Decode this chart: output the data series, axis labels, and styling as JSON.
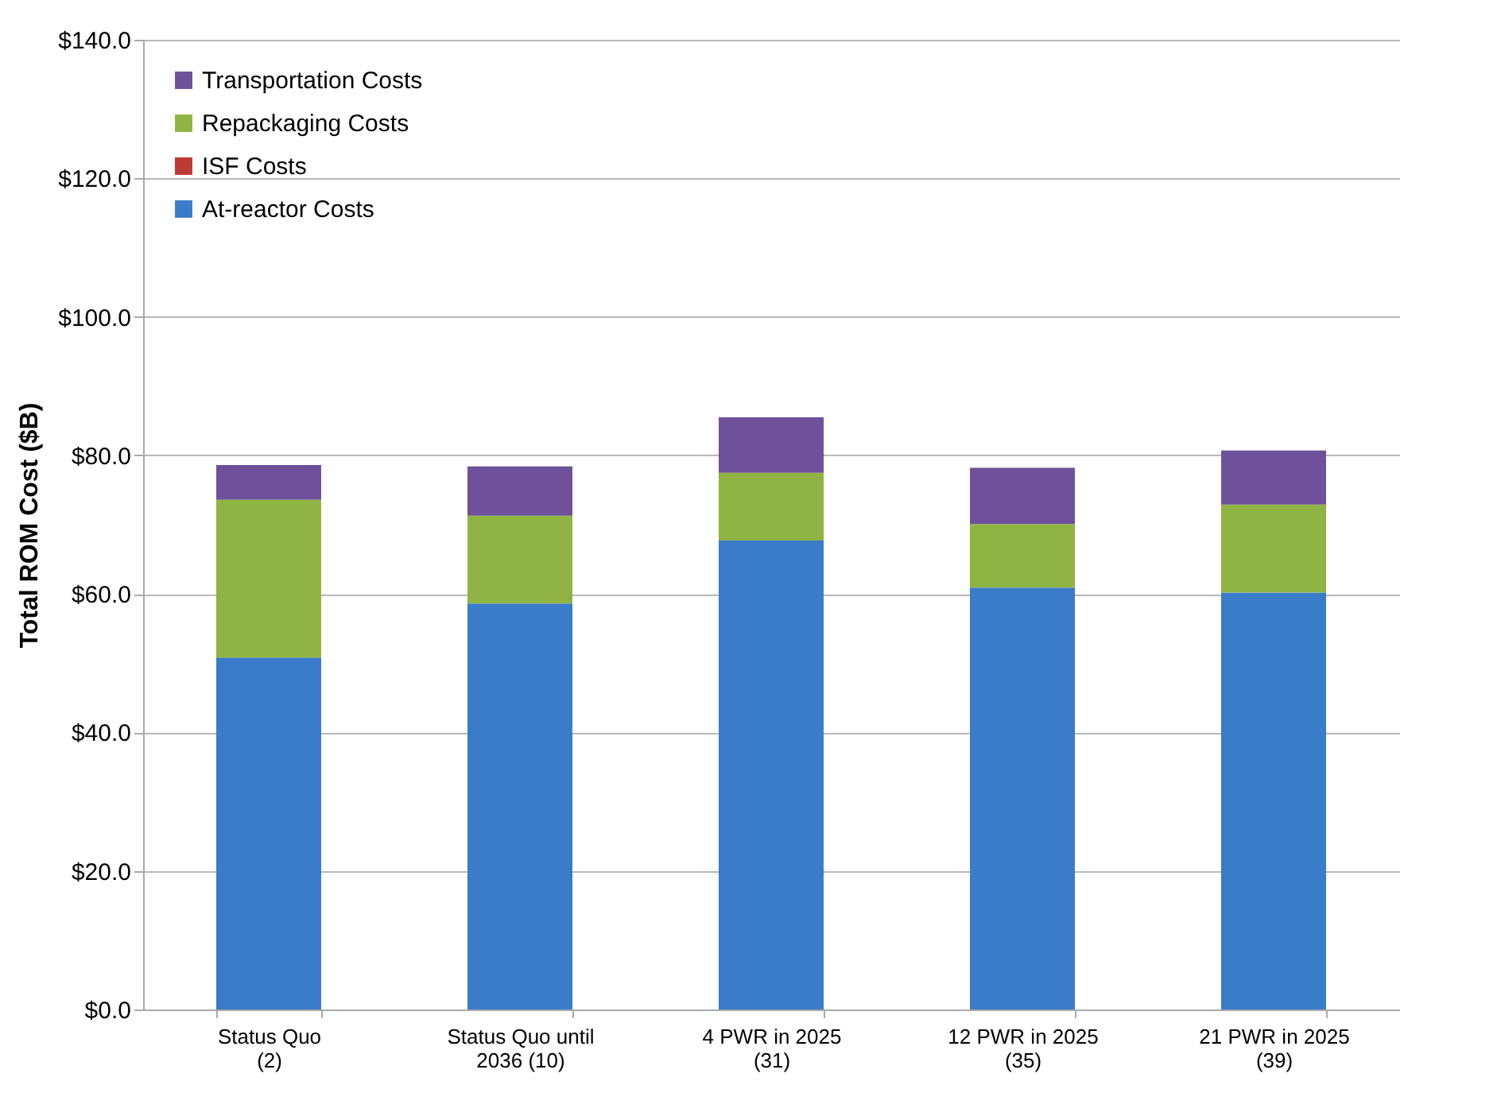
{
  "chart_data": {
    "type": "bar",
    "stacked": true,
    "ylabel": "Total ROM Cost ($B)",
    "categories": [
      "Status Quo\n(2)",
      "Status Quo until\n2036 (10)",
      "4 PWR in 2025\n(31)",
      "12 PWR in 2025\n(35)",
      "21 PWR in 2025\n(39)"
    ],
    "series": [
      {
        "name": "At-reactor Costs",
        "color": "#3a7cc9",
        "values": [
          50.8,
          58.6,
          67.7,
          60.9,
          60.2
        ]
      },
      {
        "name": "ISF Costs",
        "color": "#be3a34",
        "values": [
          0,
          0,
          0,
          0,
          0
        ]
      },
      {
        "name": "Repackaging Costs",
        "color": "#8fb443",
        "values": [
          22.8,
          12.7,
          9.8,
          9.2,
          12.7
        ]
      },
      {
        "name": "Transportation Costs",
        "color": "#6e519a",
        "values": [
          5.0,
          7.1,
          8.0,
          8.1,
          7.8
        ]
      }
    ],
    "ylim": [
      0,
      140
    ],
    "yticks": [
      {
        "value": 0,
        "label": "$0.0"
      },
      {
        "value": 20,
        "label": "$20.0"
      },
      {
        "value": 40,
        "label": "$40.0"
      },
      {
        "value": 60,
        "label": "$60.0"
      },
      {
        "value": 80,
        "label": "$80.0"
      },
      {
        "value": 100,
        "label": "$100.0"
      },
      {
        "value": 120,
        "label": "$120.0"
      },
      {
        "value": 140,
        "label": "$140.0"
      }
    ],
    "grid": "y",
    "legend": "top left"
  }
}
